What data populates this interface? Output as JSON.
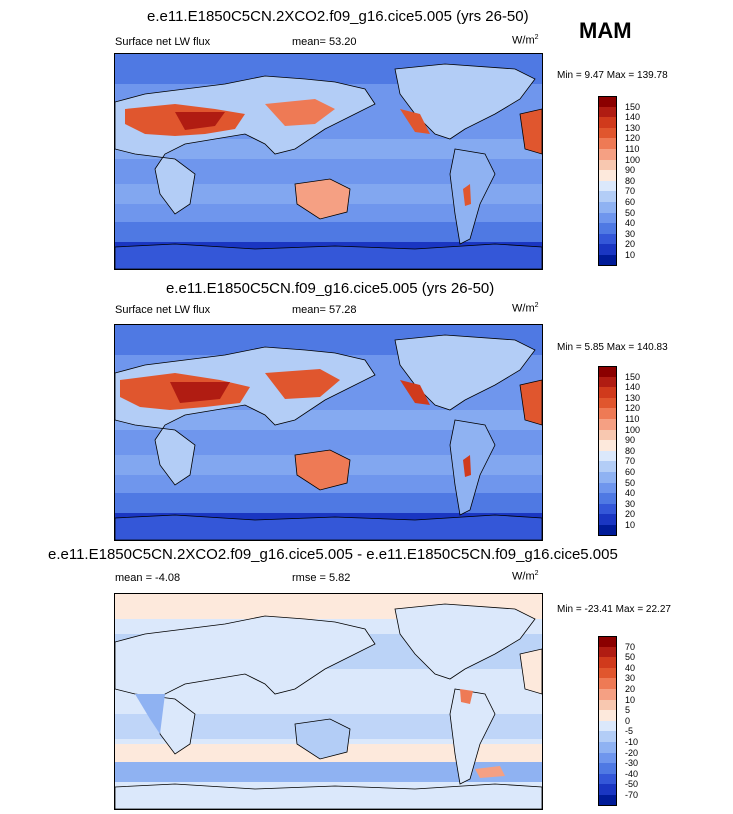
{
  "season": "MAM",
  "panels": [
    {
      "title": "e.e11.E1850C5CN.2XCO2.f09_g16.cice5.005 (yrs 26-50)",
      "left_label": "Surface net LW flux",
      "center_label": "mean=  53.20",
      "units_base": "W/m",
      "units_exp": "2",
      "minmax": "Min =   9.47 Max = 139.78",
      "colorbar": {
        "labels": [
          "150",
          "140",
          "130",
          "120",
          "110",
          "100",
          "90",
          "80",
          "70",
          "60",
          "50",
          "40",
          "30",
          "20",
          "10"
        ],
        "colors": [
          "#8b0000",
          "#b01c12",
          "#d03a1c",
          "#e0562e",
          "#ee7a55",
          "#f5a083",
          "#f8c8b0",
          "#fde9dc",
          "#dbe8fb",
          "#b3cdf6",
          "#8fb2f2",
          "#6f96ed",
          "#4f79e3",
          "#3457d8",
          "#1a36c2",
          "#001b98"
        ]
      }
    },
    {
      "title": "e.e11.E1850C5CN.f09_g16.cice5.005 (yrs 26-50)",
      "left_label": "Surface net LW flux",
      "center_label": "mean=  57.28",
      "units_base": "W/m",
      "units_exp": "2",
      "minmax": "Min =   5.85 Max = 140.83",
      "colorbar": {
        "labels": [
          "150",
          "140",
          "130",
          "120",
          "110",
          "100",
          "90",
          "80",
          "70",
          "60",
          "50",
          "40",
          "30",
          "20",
          "10"
        ],
        "colors": [
          "#8b0000",
          "#b01c12",
          "#d03a1c",
          "#e0562e",
          "#ee7a55",
          "#f5a083",
          "#f8c8b0",
          "#fde9dc",
          "#dbe8fb",
          "#b3cdf6",
          "#8fb2f2",
          "#6f96ed",
          "#4f79e3",
          "#3457d8",
          "#1a36c2",
          "#001b98"
        ]
      }
    },
    {
      "title": "e.e11.E1850C5CN.2XCO2.f09_g16.cice5.005 - e.e11.E1850C5CN.f09_g16.cice5.005",
      "left_label": "mean =  -4.08",
      "center_label": "rmse =  5.82",
      "units_base": "W/m",
      "units_exp": "2",
      "minmax": "Min = -23.41 Max =  22.27",
      "colorbar": {
        "labels": [
          "70",
          "50",
          "40",
          "30",
          "20",
          "10",
          "5",
          "0",
          "-5",
          "-10",
          "-20",
          "-30",
          "-40",
          "-50",
          "-70"
        ],
        "colors": [
          "#8b0000",
          "#b01c12",
          "#d03a1c",
          "#e0562e",
          "#ee7a55",
          "#f5a083",
          "#f8c8b0",
          "#fde9dc",
          "#dbe8fb",
          "#b3cdf6",
          "#8fb2f2",
          "#6f96ed",
          "#4f79e3",
          "#3457d8",
          "#1a36c2",
          "#001b98"
        ]
      }
    }
  ],
  "map_colors": {
    "ocean": "#6f96ed",
    "ocean_deep": "#4f79e3",
    "ocean_band": "#8fb2f2",
    "land_hot": "#e0562e",
    "land_warm": "#f5a083",
    "land_mid": "#b3cdf6",
    "ice": "#1a36c2",
    "diff_bg": "#dbe8fb",
    "diff_warm": "#fde9dc",
    "diff_cool": "#b3cdf6"
  }
}
